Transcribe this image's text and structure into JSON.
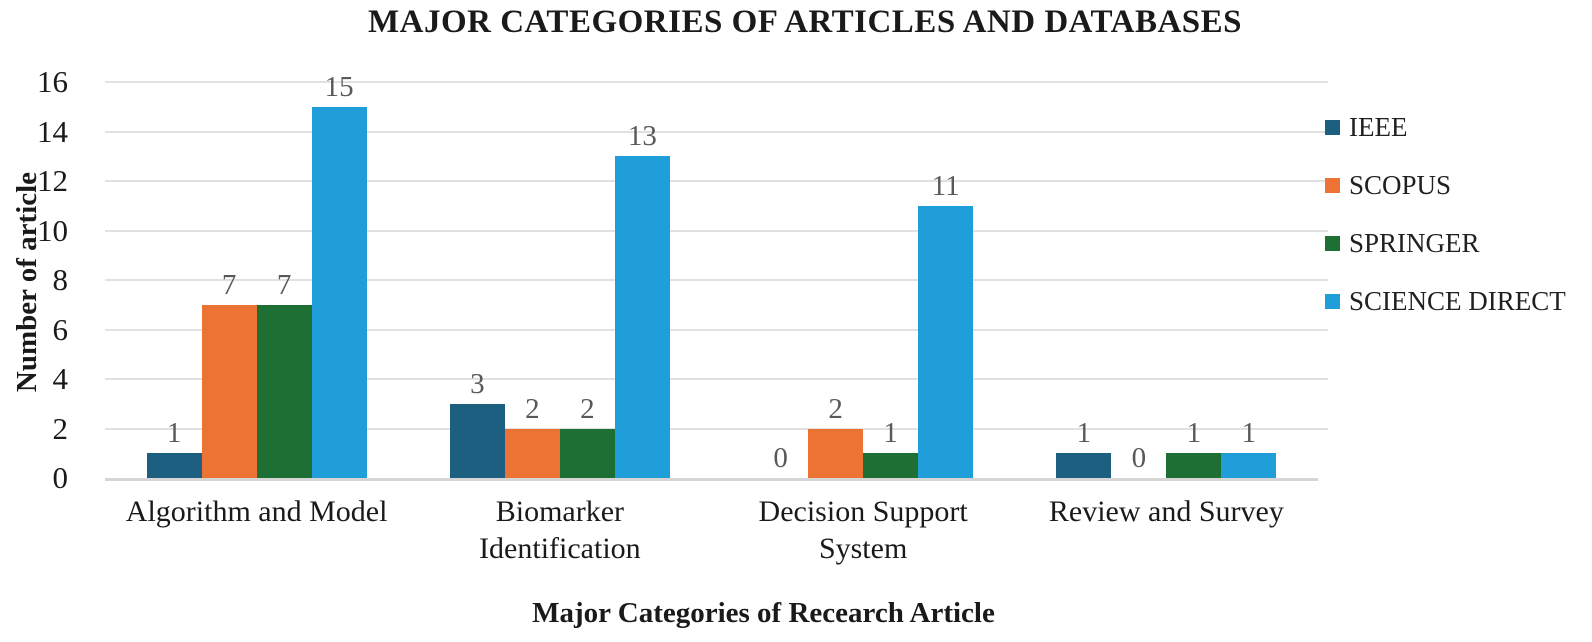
{
  "chart_data": {
    "type": "bar",
    "title": "MAJOR CATEGORIES OF ARTICLES AND DATABASES",
    "xlabel": "Major Categories of Recearch Article",
    "ylabel": "Number of article",
    "categories": [
      "Algorithm and Model",
      "Biomarker Identification",
      "Decision Support System",
      "Review and Survey"
    ],
    "category_display": [
      "Algorithm and Model",
      "Biomarker\nIdentification",
      "Decision Support\nSystem",
      "Review and Survey"
    ],
    "series": [
      {
        "name": "IEEE",
        "color": "#1D5F80",
        "values": [
          1,
          3,
          0,
          1
        ]
      },
      {
        "name": "SCOPUS",
        "color": "#EC7333",
        "values": [
          7,
          2,
          2,
          0
        ]
      },
      {
        "name": "SPRINGER",
        "color": "#1E6F34",
        "values": [
          7,
          2,
          1,
          1
        ]
      },
      {
        "name": "SCIENCE DIRECT",
        "color": "#1F9ED9",
        "values": [
          15,
          13,
          11,
          1
        ]
      }
    ],
    "ylim": [
      0,
      16
    ],
    "ytick_step": 2,
    "yticks": [
      0,
      2,
      4,
      6,
      8,
      10,
      12,
      14,
      16
    ],
    "grid": true,
    "data_labels": true,
    "legend_position": "right",
    "colors": {
      "gridline": "#E1E1E1",
      "axis_line": "#D5D5D5",
      "data_label": "#595959",
      "text": "#1A1A1A"
    }
  }
}
